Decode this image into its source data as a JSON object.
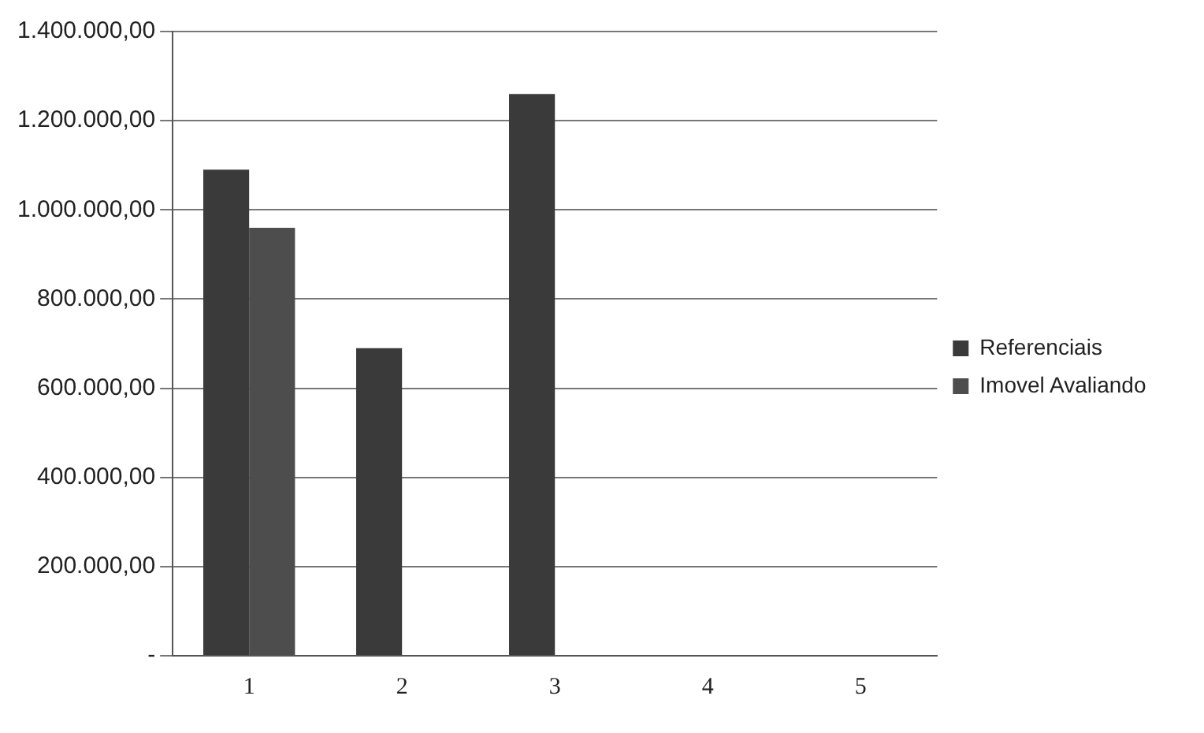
{
  "chart_data": {
    "type": "bar",
    "categories": [
      "1",
      "2",
      "3",
      "4",
      "5"
    ],
    "series": [
      {
        "name": "Referenciais",
        "color": "#3a3a3a",
        "values": [
          1090000,
          690000,
          1260000,
          null,
          null
        ]
      },
      {
        "name": "Imovel Avaliando",
        "color": "#4d4d4d",
        "values": [
          960000,
          null,
          null,
          null,
          null
        ]
      }
    ],
    "ylim": [
      0,
      1400000
    ],
    "yticks": [
      {
        "value": 0,
        "label": "-"
      },
      {
        "value": 200000,
        "label": "200.000,00"
      },
      {
        "value": 400000,
        "label": "400.000,00"
      },
      {
        "value": 600000,
        "label": "600.000,00"
      },
      {
        "value": 800000,
        "label": "800.000,00"
      },
      {
        "value": 1000000,
        "label": "1.000.000,00"
      },
      {
        "value": 1200000,
        "label": "1.200.000,00"
      },
      {
        "value": 1400000,
        "label": "1.400.000,00"
      }
    ],
    "grid": "y",
    "legend": "right"
  }
}
